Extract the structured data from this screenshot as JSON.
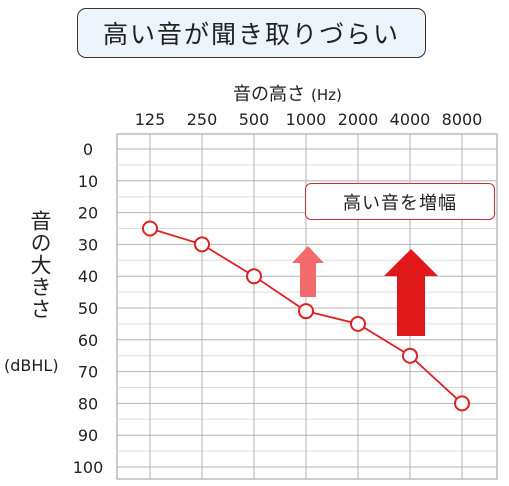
{
  "title": "高い音が聞き取りづらい",
  "annotation": "高い音を増幅",
  "colors": {
    "line": "#e02020",
    "arrow_light": "#f26a6a",
    "arrow_dark": "#e0181a",
    "grid": "#bdbdbd",
    "title_bg": "#eef4fb"
  },
  "chart_data": {
    "type": "line",
    "xlabel": "音の高さ",
    "xlabel_unit": "(Hz)",
    "ylabel": "音の大きさ",
    "ylabel_unit": "(dBHL)",
    "categories": [
      "125",
      "250",
      "500",
      "1000",
      "2000",
      "4000",
      "8000"
    ],
    "y_ticks": [
      "0",
      "10",
      "20",
      "30",
      "40",
      "50",
      "60",
      "70",
      "80",
      "90",
      "100"
    ],
    "ylim": [
      0,
      100
    ],
    "y_inverted": true,
    "grid": true,
    "series": [
      {
        "values": [
          25,
          30,
          40,
          51,
          55,
          65,
          80
        ]
      }
    ]
  }
}
